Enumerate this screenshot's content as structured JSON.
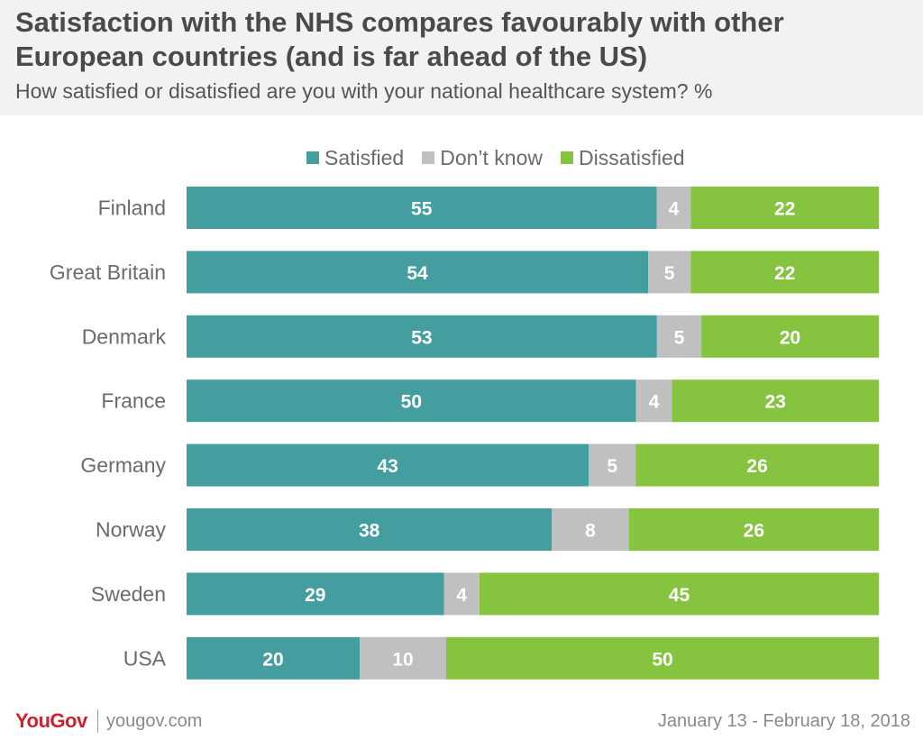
{
  "header": {
    "title": "Satisfaction with the NHS compares favourably with other European countries (and is far ahead of the US)",
    "subtitle": "How satisfied or disatisfied are you with your national healthcare system? %"
  },
  "footer": {
    "logo": "YouGov",
    "url": "yougov.com",
    "date": "January 13 - February 18, 2018"
  },
  "colors": {
    "satisfied": "#449e9f",
    "dont_know": "#c0c0c0",
    "dissatisfied": "#86c440"
  },
  "chart_data": {
    "type": "bar",
    "orientation": "horizontal",
    "stacked": true,
    "categories": [
      "Finland",
      "Great Britain",
      "Denmark",
      "France",
      "Germany",
      "Norway",
      "Sweden",
      "USA"
    ],
    "series": [
      {
        "name": "Satisfied",
        "values": [
          55,
          54,
          53,
          50,
          43,
          38,
          29,
          20
        ]
      },
      {
        "name": "Don’t know",
        "values": [
          4,
          5,
          5,
          4,
          5,
          8,
          4,
          10
        ]
      },
      {
        "name": "Dissatisfied",
        "values": [
          22,
          22,
          20,
          23,
          26,
          26,
          45,
          50
        ]
      }
    ],
    "legend_position": "top",
    "grid": false
  }
}
